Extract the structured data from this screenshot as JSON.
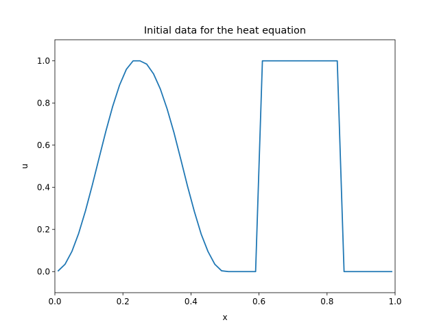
{
  "chart_data": {
    "type": "line",
    "title": "Initial data for the heat equation",
    "xlabel": "x",
    "ylabel": "u",
    "xlim": [
      0.0,
      1.0
    ],
    "ylim": [
      -0.1,
      1.1
    ],
    "xticks": [
      0.0,
      0.2,
      0.4,
      0.6,
      0.8,
      1.0
    ],
    "xtick_labels": [
      "0.0",
      "0.2",
      "0.4",
      "0.6",
      "0.8",
      "1.0"
    ],
    "yticks": [
      0.0,
      0.2,
      0.4,
      0.6,
      0.8,
      1.0
    ],
    "ytick_labels": [
      "0.0",
      "0.2",
      "0.4",
      "0.6",
      "0.8",
      "1.0"
    ],
    "grid": false,
    "color": "#1f77b4",
    "series": [
      {
        "x": [
          0.01,
          0.03,
          0.05,
          0.07,
          0.09,
          0.11,
          0.13,
          0.15,
          0.17,
          0.19,
          0.21,
          0.23,
          0.25,
          0.27,
          0.29,
          0.31,
          0.33,
          0.35,
          0.37,
          0.39,
          0.41,
          0.43,
          0.45,
          0.47,
          0.49,
          0.51,
          0.53,
          0.55,
          0.57,
          0.59,
          0.61,
          0.63,
          0.65,
          0.67,
          0.69,
          0.71,
          0.73,
          0.75,
          0.77,
          0.79,
          0.81,
          0.83,
          0.85,
          0.87,
          0.89,
          0.91,
          0.93,
          0.95,
          0.97,
          0.99
        ],
        "y": [
          0.0039,
          0.0351,
          0.0955,
          0.1816,
          0.2887,
          0.4104,
          0.5392,
          0.6667,
          0.7844,
          0.8843,
          0.9594,
          1.0,
          1.0,
          0.9843,
          0.9383,
          0.8663,
          0.7716,
          0.6597,
          0.5333,
          0.4044,
          0.2849,
          0.1779,
          0.0955,
          0.0351,
          0.0039,
          0.0,
          0.0,
          0.0,
          0.0,
          0.0,
          1.0,
          1.0,
          1.0,
          1.0,
          1.0,
          1.0,
          1.0,
          1.0,
          1.0,
          1.0,
          1.0,
          1.0,
          0.0,
          0.0,
          0.0,
          0.0,
          0.0,
          0.0,
          0.0,
          0.0
        ]
      }
    ]
  }
}
